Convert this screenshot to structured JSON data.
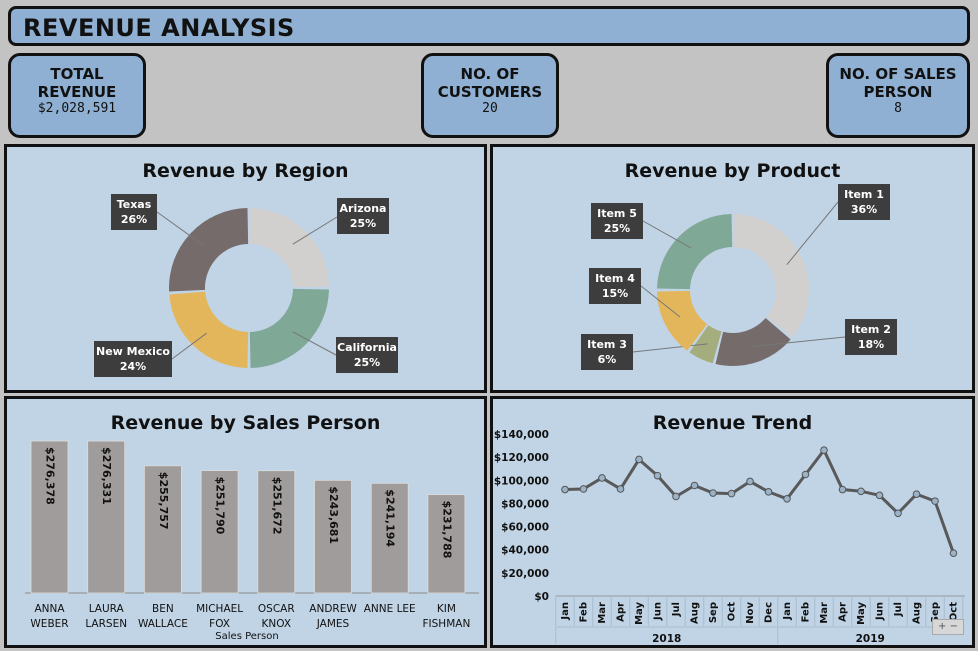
{
  "header": {
    "title": "REVENUE ANALYSIS"
  },
  "kpis": [
    {
      "label_lines": [
        "TOTAL",
        "REVENUE"
      ],
      "value": "$2,028,591"
    },
    {
      "label_lines": [
        "NO. OF",
        "CUSTOMERS"
      ],
      "value": "20"
    },
    {
      "label_lines": [
        "NO. OF SALES",
        "PERSON"
      ],
      "value": "8"
    }
  ],
  "colors": {
    "panel_bg": "#c0d4e6",
    "kpi_bg": "#8fb0d2",
    "bar": "#a09c9c",
    "line": "#595959",
    "marker": "#9bb2c7",
    "callout": "#3d3d3d"
  },
  "chart_data": [
    {
      "type": "pie",
      "variant": "donut",
      "title": "Revenue by Region",
      "slices": [
        {
          "label": "Arizona",
          "pct_label": "25%",
          "value": 25,
          "color": "#d2cfcf"
        },
        {
          "label": "California",
          "pct_label": "25%",
          "value": 25,
          "color": "#7fa896"
        },
        {
          "label": "New Mexico",
          "pct_label": "24%",
          "value": 24,
          "color": "#e4b65c"
        },
        {
          "label": "Texas",
          "pct_label": "26%",
          "value": 26,
          "color": "#756b6b"
        }
      ]
    },
    {
      "type": "pie",
      "variant": "donut",
      "title": "Revenue by Product",
      "slices": [
        {
          "label": "Item 1",
          "pct_label": "36%",
          "value": 36,
          "color": "#d2cfcf"
        },
        {
          "label": "Item 2",
          "pct_label": "18%",
          "value": 18,
          "color": "#756b6b"
        },
        {
          "label": "Item 3",
          "pct_label": "6%",
          "value": 6,
          "color": "#a4ad7d"
        },
        {
          "label": "Item 4",
          "pct_label": "15%",
          "value": 15,
          "color": "#e4b65c"
        },
        {
          "label": "Item 5",
          "pct_label": "25%",
          "value": 25,
          "color": "#7fa896"
        }
      ]
    },
    {
      "type": "bar",
      "title": "Revenue by Sales Person",
      "xlabel": "Sales Person",
      "categories": [
        [
          "ANNA",
          "WEBER"
        ],
        [
          "LAURA",
          "LARSEN"
        ],
        [
          "BEN",
          "WALLACE"
        ],
        [
          "MICHAEL",
          "FOX"
        ],
        [
          "OSCAR",
          "KNOX"
        ],
        [
          "ANDREW",
          "JAMES"
        ],
        [
          "ANNE LEE"
        ],
        [
          "KIM",
          "FISHMAN"
        ]
      ],
      "values": [
        276378,
        276331,
        255757,
        251790,
        251672,
        243681,
        241194,
        231788
      ],
      "value_labels": [
        "$276,378",
        "$276,331",
        "$255,757",
        "$251,790",
        "$251,672",
        "$243,681",
        "$241,194",
        "$231,788"
      ]
    },
    {
      "type": "line",
      "title": "Revenue Trend",
      "months": [
        "Jan",
        "Feb",
        "Mar",
        "Apr",
        "May",
        "Jun",
        "Jul",
        "Aug",
        "Sep",
        "Oct",
        "Nov",
        "Dec",
        "Jan",
        "Feb",
        "Mar",
        "Apr",
        "May",
        "Jun",
        "Jul",
        "Aug",
        "Sep",
        "Oct"
      ],
      "years": [
        {
          "label": "2018",
          "count": 12
        },
        {
          "label": "2019",
          "count": 10
        }
      ],
      "values": [
        92000,
        92500,
        102000,
        92500,
        118000,
        104000,
        86000,
        95500,
        89000,
        88500,
        99000,
        90000,
        84000,
        105000,
        126000,
        92000,
        90500,
        87000,
        71500,
        88000,
        82000,
        37000
      ],
      "ylim": [
        0,
        140000
      ],
      "yticks": [
        0,
        20000,
        40000,
        60000,
        80000,
        100000,
        120000,
        140000
      ],
      "ytick_labels": [
        "$0",
        "$20,000",
        "$40,000",
        "$60,000",
        "$80,000",
        "$100,000",
        "$120,000",
        "$140,000"
      ]
    }
  ]
}
